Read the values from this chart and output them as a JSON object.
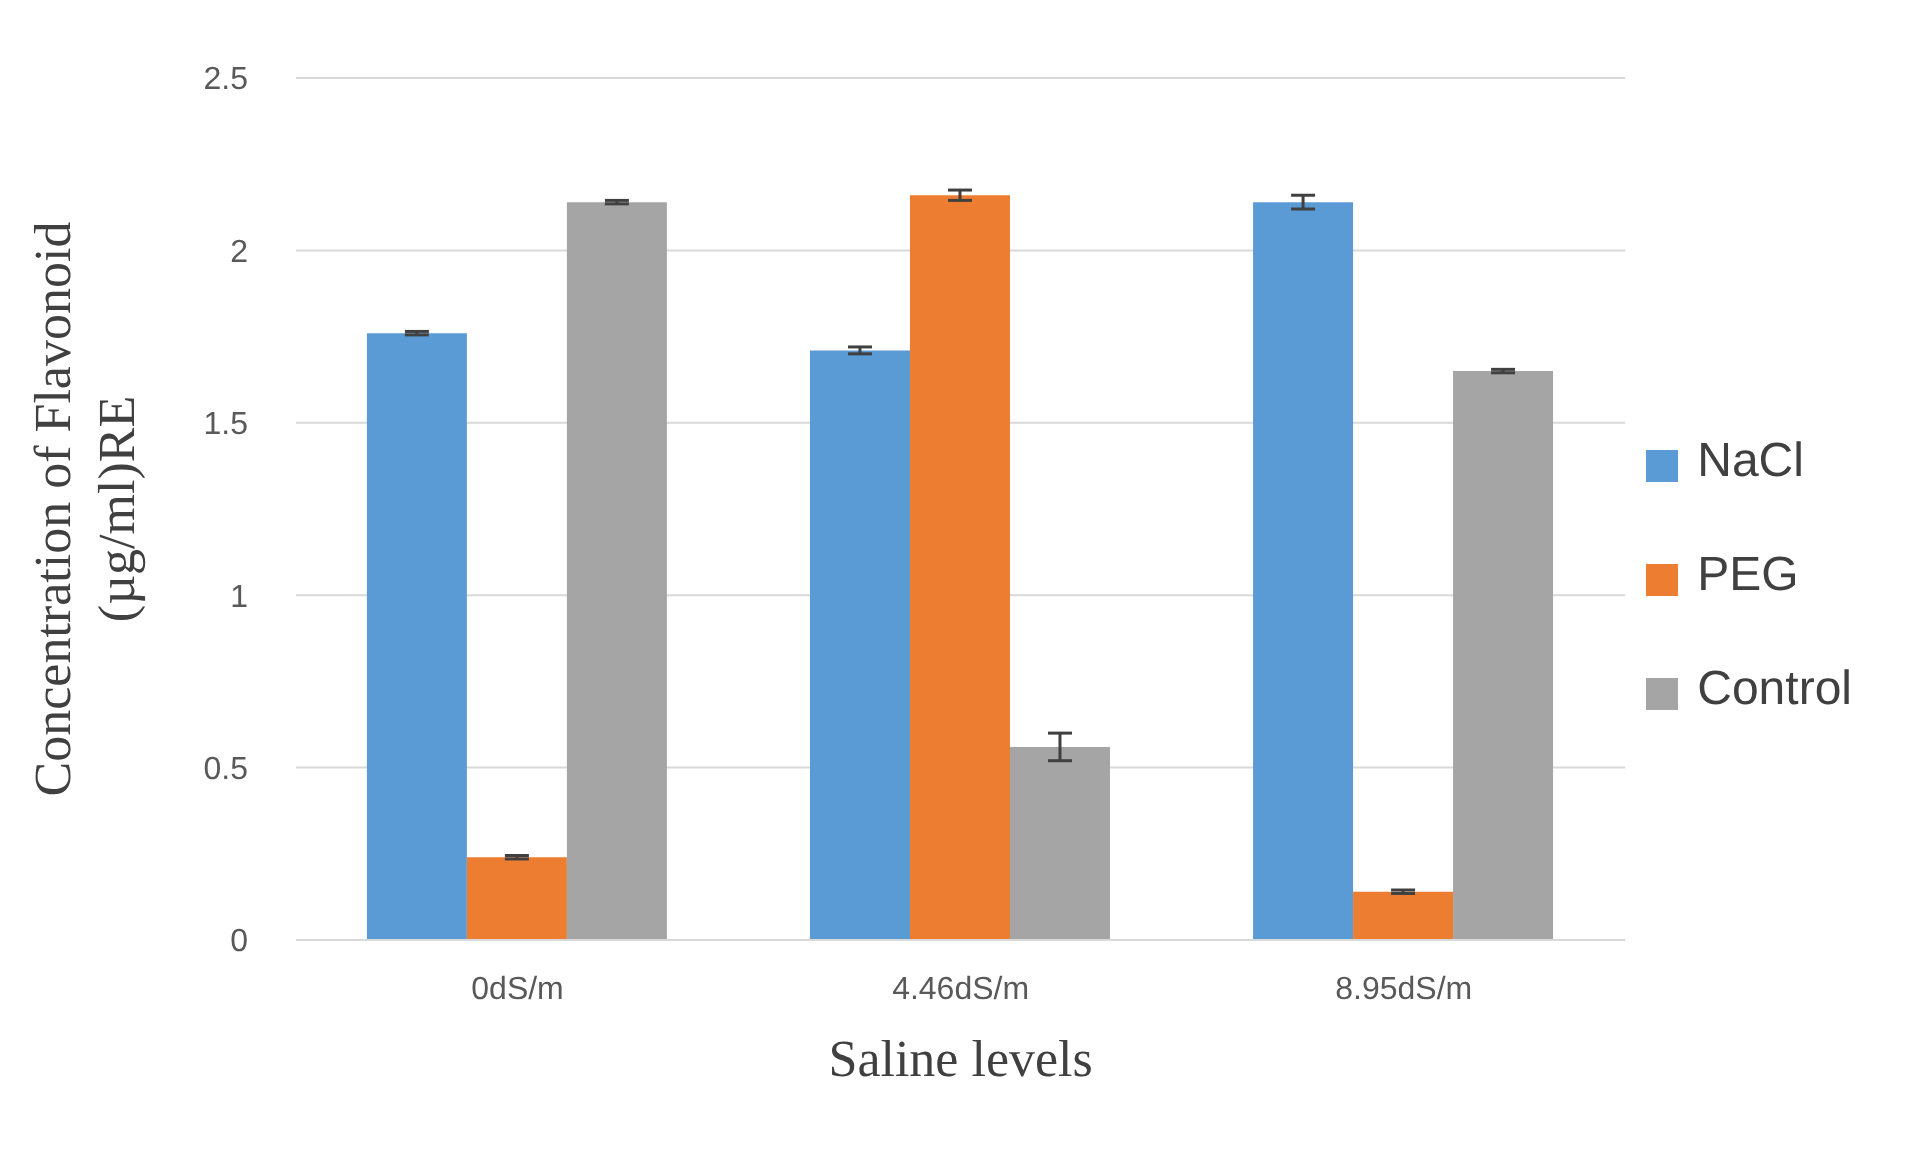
{
  "chart_data": {
    "type": "bar",
    "xlabel": "Saline levels",
    "ylabel": "Concentration of Flavonoid (µg/ml)RE",
    "categories": [
      "0dS/m",
      "4.46dS/m",
      "8.95dS/m"
    ],
    "series": [
      {
        "name": "NaCl",
        "color": "#5b9bd5",
        "values": [
          1.76,
          1.71,
          2.14
        ],
        "errors": [
          0.005,
          0.01,
          0.02
        ]
      },
      {
        "name": "PEG",
        "color": "#ed7d31",
        "values": [
          0.24,
          2.16,
          0.14
        ],
        "errors": [
          0.005,
          0.015,
          0.005
        ]
      },
      {
        "name": "Control",
        "color": "#a5a5a5",
        "values": [
          2.14,
          0.56,
          1.65
        ],
        "errors": [
          0.005,
          0.04,
          0.005
        ]
      }
    ],
    "ylim": [
      0,
      2.5
    ],
    "yticks": [
      0,
      0.5,
      1,
      1.5,
      2,
      2.5
    ],
    "grid": "y",
    "legend": "right"
  }
}
